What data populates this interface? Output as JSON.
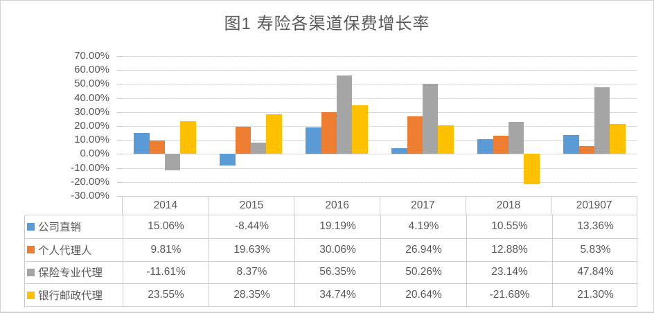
{
  "chart_data": {
    "type": "bar",
    "title": "图1 寿险各渠道保费增长率",
    "categories": [
      "2014",
      "2015",
      "2016",
      "2017",
      "2018",
      "201907"
    ],
    "series": [
      {
        "name": "公司直销",
        "color": "#5B9BD5",
        "values": [
          15.06,
          -8.44,
          19.19,
          4.19,
          10.55,
          13.36
        ],
        "display": [
          "15.06%",
          "-8.44%",
          "19.19%",
          "4.19%",
          "10.55%",
          "13.36%"
        ]
      },
      {
        "name": "个人代理人",
        "color": "#ED7D31",
        "values": [
          9.81,
          19.63,
          30.06,
          26.94,
          12.88,
          5.83
        ],
        "display": [
          "9.81%",
          "19.63%",
          "30.06%",
          "26.94%",
          "12.88%",
          "5.83%"
        ]
      },
      {
        "name": "保险专业代理",
        "color": "#A5A5A5",
        "values": [
          -11.61,
          8.37,
          56.35,
          50.26,
          23.14,
          47.84
        ],
        "display": [
          "-11.61%",
          "8.37%",
          "56.35%",
          "50.26%",
          "23.14%",
          "47.84%"
        ]
      },
      {
        "name": "银行邮政代理",
        "color": "#FFC000",
        "values": [
          23.55,
          28.35,
          34.74,
          20.64,
          -21.68,
          21.3
        ],
        "display": [
          "23.55%",
          "28.35%",
          "34.74%",
          "20.64%",
          "-21.68%",
          "21.30%"
        ]
      }
    ],
    "y_axis": {
      "min": -30,
      "max": 70,
      "step": 10,
      "tick_labels": [
        "70.00%",
        "60.00%",
        "50.00%",
        "40.00%",
        "30.00%",
        "20.00%",
        "10.00%",
        "0.00%",
        "-10.00%",
        "-20.00%",
        "-30.00%"
      ]
    },
    "grid": true,
    "legend_position": "data-table-left",
    "ylabel": "",
    "xlabel": ""
  },
  "colors": {
    "text": "#595959",
    "gridline": "#D6D6D6",
    "table_border": "#CDCDCD",
    "series": [
      "#5B9BD5",
      "#ED7D31",
      "#A5A5A5",
      "#FFC000"
    ]
  }
}
